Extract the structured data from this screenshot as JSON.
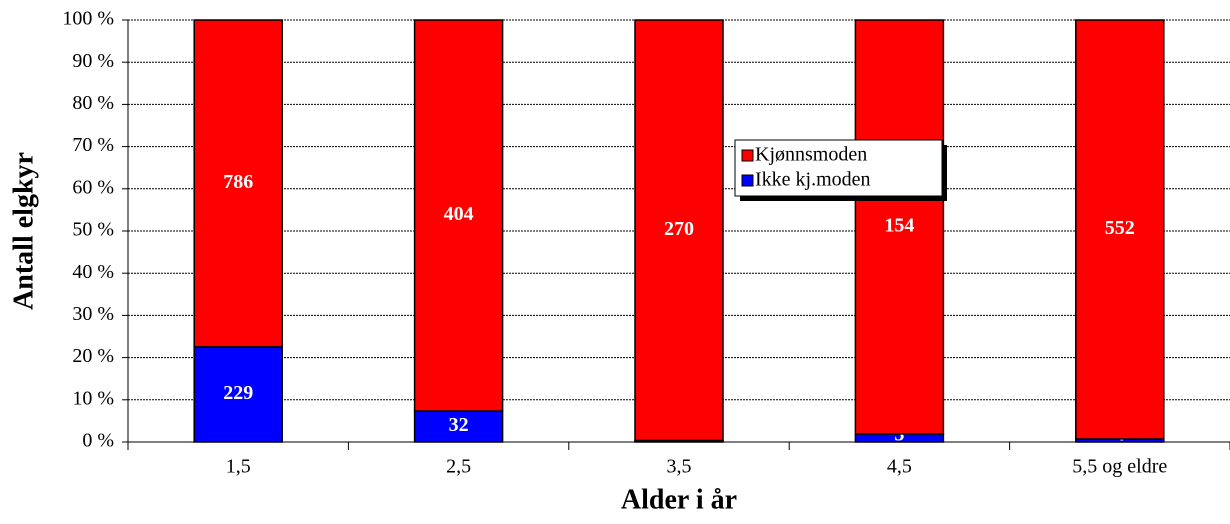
{
  "chart_data": {
    "type": "bar",
    "stack": "percent",
    "y_label": "Antall elgkyr",
    "x_label": "Alder i år",
    "categories": [
      "1,5",
      "2,5",
      "3,5",
      "4,5",
      "5,5 og eldre"
    ],
    "series": [
      {
        "name": "Ikke kj.moden",
        "color": "#0000ff",
        "values": [
          229,
          32,
          1,
          3,
          4
        ]
      },
      {
        "name": "Kjønnsmoden",
        "color": "#ff0000",
        "values": [
          786,
          404,
          270,
          154,
          552
        ]
      }
    ],
    "ylim": [
      0,
      100
    ],
    "yticks": [
      {
        "value": 0,
        "label": "0 %"
      },
      {
        "value": 10,
        "label": "10 %"
      },
      {
        "value": 20,
        "label": "20 %"
      },
      {
        "value": 30,
        "label": "30 %"
      },
      {
        "value": 40,
        "label": "40 %"
      },
      {
        "value": 50,
        "label": "50 %"
      },
      {
        "value": 60,
        "label": "60 %"
      },
      {
        "value": 70,
        "label": "70 %"
      },
      {
        "value": 80,
        "label": "80 %"
      },
      {
        "value": 90,
        "label": "90 %"
      },
      {
        "value": 100,
        "label": "100 %"
      }
    ],
    "grid": true
  }
}
